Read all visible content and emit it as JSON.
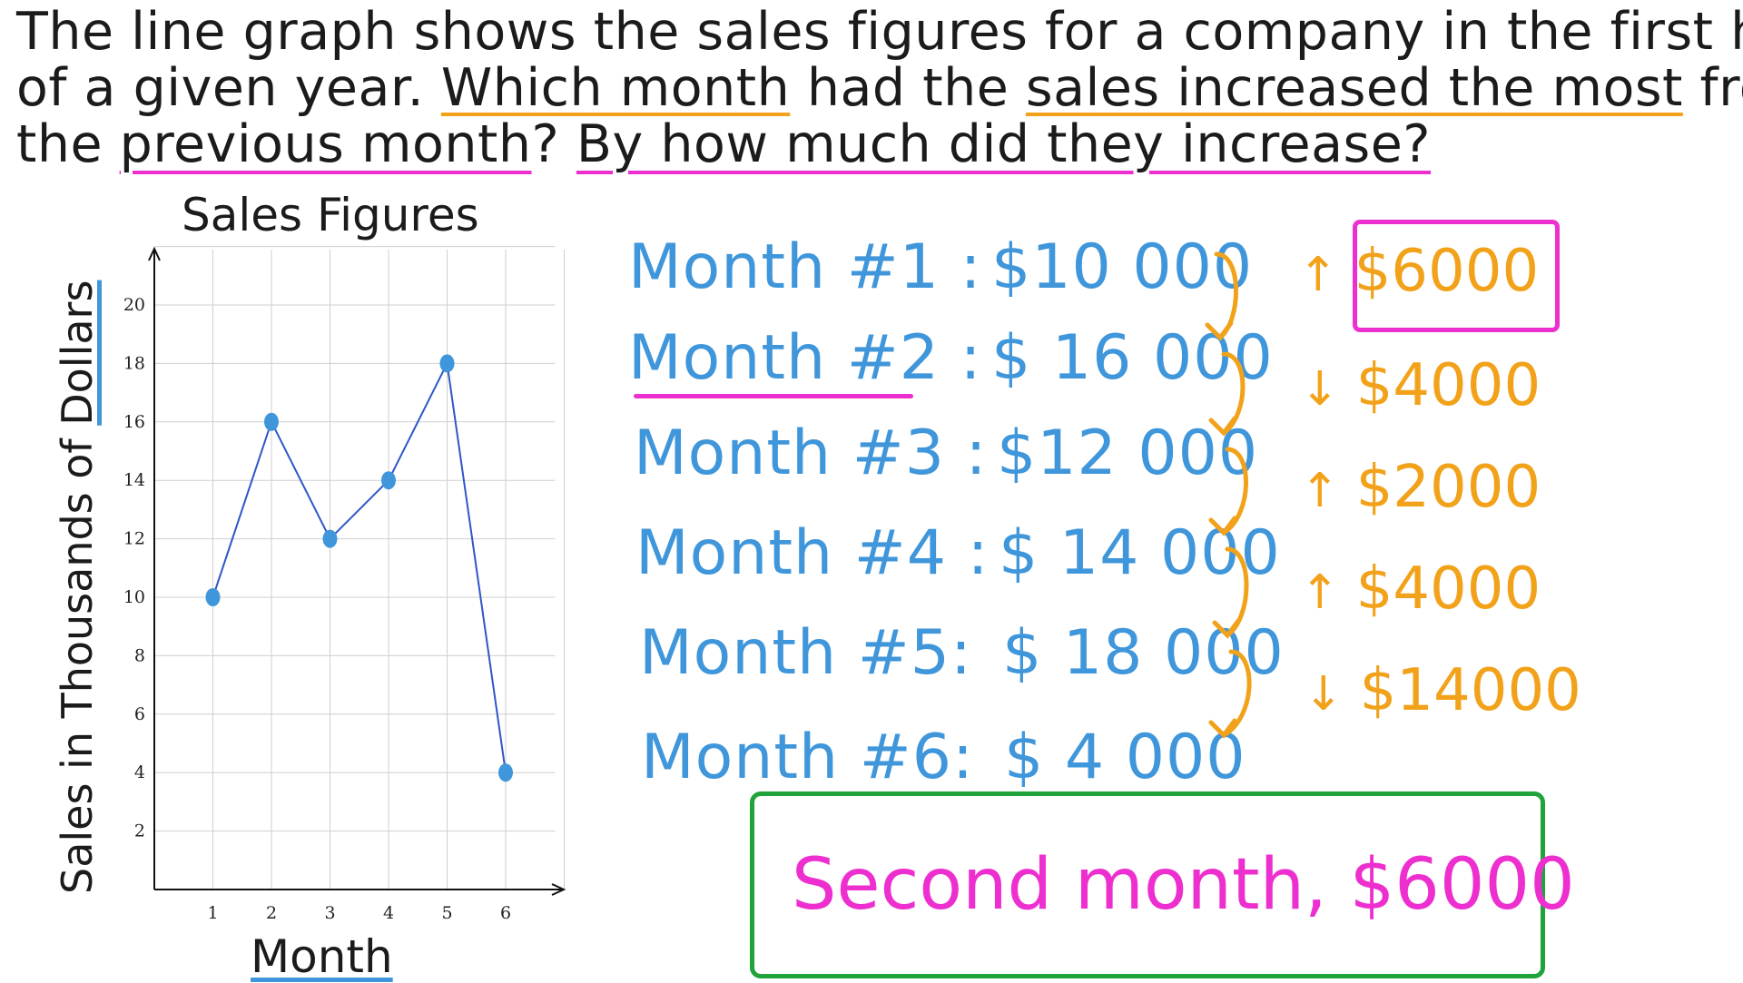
{
  "question": {
    "line1": "The line graph shows the sales figures for a company in the first half",
    "line2_a": "of a given year. ",
    "line2_b": "Which month",
    "line2_c": " had the ",
    "line2_d": "sales increased the most",
    "line2_e": " from",
    "line3_a": "the ",
    "line3_b": "previous month",
    "line3_c": "? ",
    "line3_d": "By how much did they increase?"
  },
  "chart_data": {
    "type": "line",
    "title": "Sales Figures",
    "xlabel": "Month",
    "ylabel_a": "Sales in Thousands of ",
    "ylabel_b": "Dollars",
    "categories": [
      1,
      2,
      3,
      4,
      5,
      6
    ],
    "x_ticks": [
      "1",
      "2",
      "3",
      "4",
      "5",
      "6"
    ],
    "y_ticks": [
      "2",
      "4",
      "6",
      "8",
      "10",
      "12",
      "14",
      "16",
      "18",
      "20"
    ],
    "series": [
      {
        "values": [
          10,
          16,
          12,
          14,
          18,
          4
        ]
      }
    ],
    "ylim": [
      0,
      20
    ],
    "grid": true,
    "line_color": "#2f55c8",
    "marker_color": "#3f96da"
  },
  "calculations": {
    "rows": [
      {
        "label": "Month #1 :",
        "value": "$10 000"
      },
      {
        "label": "Month #2 :",
        "value": "$ 16 000"
      },
      {
        "label": "Month #3 :",
        "value": "$12 000"
      },
      {
        "label": "Month #4 :",
        "value": "$ 14 000"
      },
      {
        "label": "Month #5:",
        "value": "$ 18 000"
      },
      {
        "label": "Month #6:",
        "value": "$ 4 000"
      }
    ],
    "differences": [
      {
        "arrow": "↑",
        "amount": "$6000"
      },
      {
        "arrow": "↓",
        "amount": "$4000"
      },
      {
        "arrow": "↑",
        "amount": "$2000"
      },
      {
        "arrow": "↑",
        "amount": "$4000"
      },
      {
        "arrow": "↓",
        "amount": "$14000"
      }
    ]
  },
  "answer": "Second month, $6000",
  "colors": {
    "blue": "#3f96da",
    "orange": "#f2a21a",
    "pink": "#ee2fd0",
    "green": "#1fa33a"
  }
}
